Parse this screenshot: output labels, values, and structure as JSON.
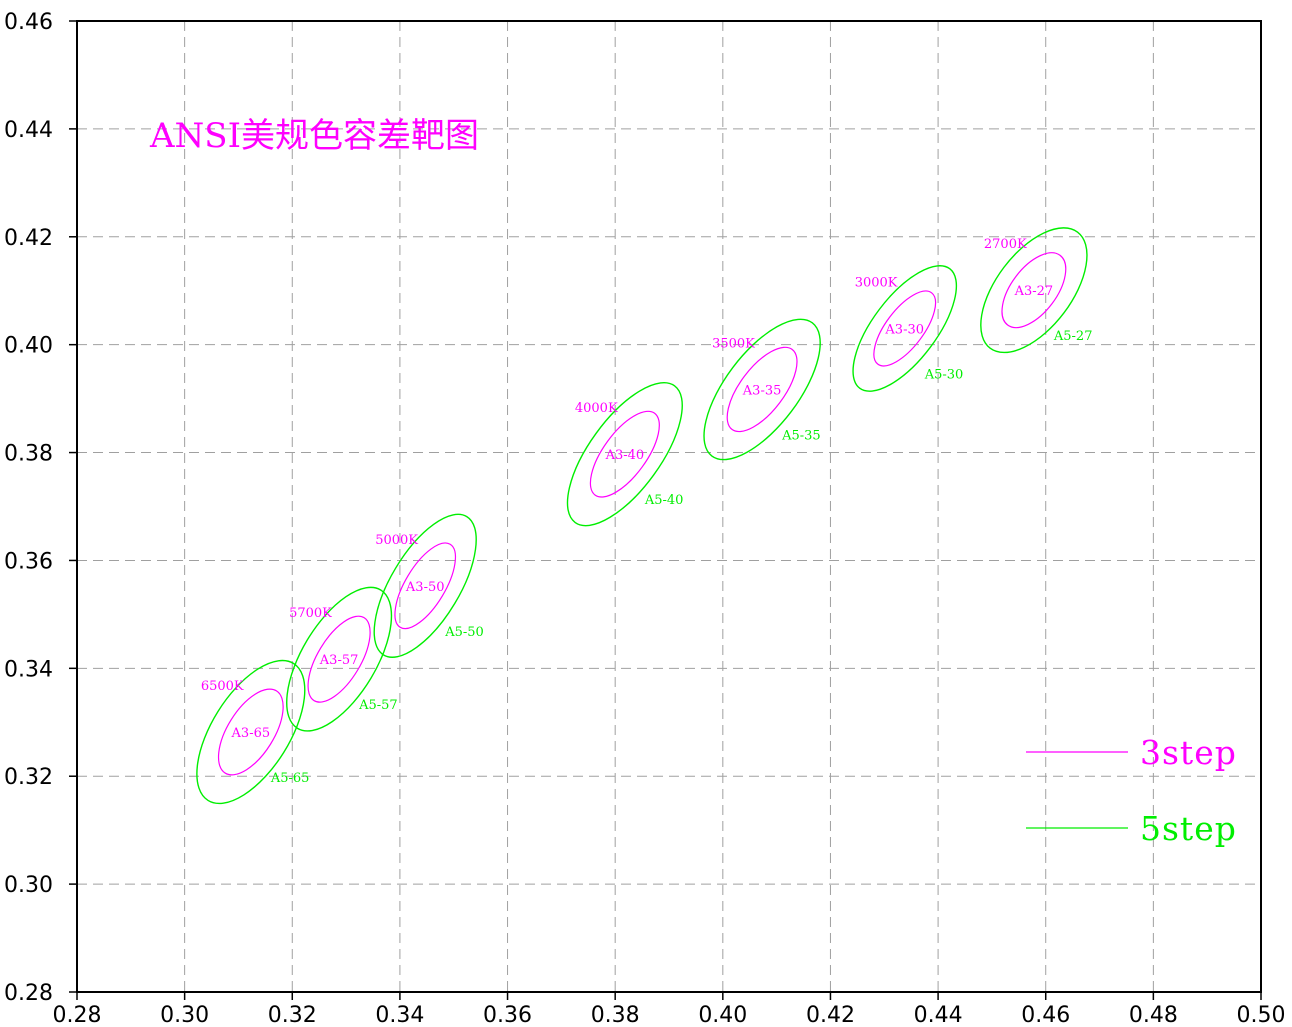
{
  "chart_data": {
    "type": "scatter",
    "title": "ANSI美规色容差靶图",
    "xlim": [
      0.28,
      0.5
    ],
    "ylim": [
      0.28,
      0.46
    ],
    "x_ticks": [
      "0.28",
      "0.30",
      "0.32",
      "0.34",
      "0.36",
      "0.38",
      "0.40",
      "0.42",
      "0.44",
      "0.46",
      "0.48",
      "0.50"
    ],
    "y_ticks": [
      "0.28",
      "0.30",
      "0.32",
      "0.34",
      "0.36",
      "0.38",
      "0.40",
      "0.42",
      "0.44",
      "0.46"
    ],
    "grid": true,
    "colors": {
      "step3": "#ff00ff",
      "step5": "#00ee00",
      "axis": "#000000",
      "grid": "#a0a0a0"
    },
    "series": [
      {
        "name": "3step",
        "color": "#ff00ff"
      },
      {
        "name": "5step",
        "color": "#00ee00"
      }
    ],
    "targets": [
      {
        "cct": "6500K",
        "label3": "A3-65",
        "label5": "A5-65",
        "x": 0.3123,
        "y": 0.3282,
        "a3": 0.009,
        "b3": 0.0043,
        "a5": 0.015,
        "b5": 0.0072,
        "angle": 58
      },
      {
        "cct": "5700K",
        "label3": "A3-57",
        "label5": "A5-57",
        "x": 0.3287,
        "y": 0.3417,
        "a3": 0.009,
        "b3": 0.004,
        "a5": 0.015,
        "b5": 0.0069,
        "angle": 59
      },
      {
        "cct": "5000K",
        "label3": "A3-50",
        "label5": "A5-50",
        "x": 0.3447,
        "y": 0.3553,
        "a3": 0.009,
        "b3": 0.0037,
        "a5": 0.015,
        "b5": 0.0064,
        "angle": 59
      },
      {
        "cct": "4000K",
        "label3": "A3-40",
        "label5": "A5-40",
        "x": 0.3818,
        "y": 0.3797,
        "a3": 0.0094,
        "b3": 0.004,
        "a5": 0.0157,
        "b5": 0.0066,
        "angle": 54
      },
      {
        "cct": "3500K",
        "label3": "A3-35",
        "label5": "A5-35",
        "x": 0.4073,
        "y": 0.3917,
        "a3": 0.0093,
        "b3": 0.0041,
        "a5": 0.0155,
        "b5": 0.0068,
        "angle": 53
      },
      {
        "cct": "3000K",
        "label3": "A3-30",
        "label5": "A5-30",
        "x": 0.4338,
        "y": 0.403,
        "a3": 0.0083,
        "b3": 0.0035,
        "a5": 0.0139,
        "b5": 0.0059,
        "angle": 53
      },
      {
        "cct": "2700K",
        "label3": "A3-27",
        "label5": "A5-27",
        "x": 0.4578,
        "y": 0.4101,
        "a3": 0.0081,
        "b3": 0.0042,
        "a5": 0.0135,
        "b5": 0.007,
        "angle": 53
      }
    ]
  },
  "legend": {
    "placement": "bottom-right",
    "items": [
      {
        "label": "3step",
        "color": "#ff00ff"
      },
      {
        "label": "5step",
        "color": "#00ee00"
      }
    ]
  }
}
